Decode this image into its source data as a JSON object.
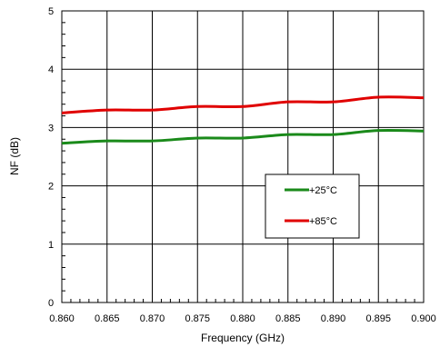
{
  "chart_data": {
    "type": "line",
    "xlabel": "Frequency (GHz)",
    "ylabel": "NF (dB)",
    "xlim": [
      0.86,
      0.9
    ],
    "ylim": [
      0,
      5
    ],
    "x_ticks": [
      0.86,
      0.865,
      0.87,
      0.875,
      0.88,
      0.885,
      0.89,
      0.895,
      0.9
    ],
    "x_tick_labels": [
      "0.860",
      "0.865",
      "0.870",
      "0.875",
      "0.880",
      "0.885",
      "0.890",
      "0.895",
      "0.900"
    ],
    "y_ticks": [
      0,
      1,
      2,
      3,
      4,
      5
    ],
    "y_tick_labels": [
      "0",
      "1",
      "2",
      "3",
      "4",
      "5"
    ],
    "grid": true,
    "legend_position": "center-right",
    "series": [
      {
        "name": "+25°C",
        "color": "#1a8a1a",
        "x": [
          0.86,
          0.865,
          0.87,
          0.875,
          0.88,
          0.885,
          0.89,
          0.895,
          0.9
        ],
        "values": [
          2.73,
          2.77,
          2.77,
          2.82,
          2.82,
          2.88,
          2.88,
          2.95,
          2.94
        ]
      },
      {
        "name": "+85°C",
        "color": "#e00000",
        "x": [
          0.86,
          0.865,
          0.87,
          0.875,
          0.88,
          0.885,
          0.89,
          0.895,
          0.9
        ],
        "values": [
          3.25,
          3.3,
          3.3,
          3.36,
          3.36,
          3.44,
          3.44,
          3.52,
          3.51
        ]
      }
    ]
  }
}
